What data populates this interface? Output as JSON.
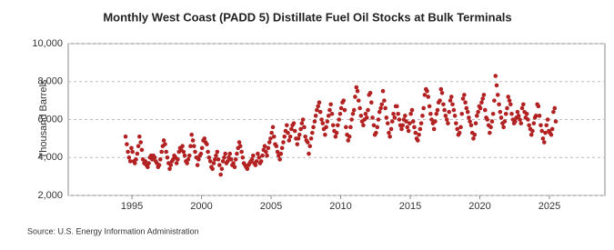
{
  "chart_data": {
    "type": "scatter",
    "title": "Monthly West Coast (PADD 5) Distillate Fuel Oil Stocks at Bulk Terminals",
    "y_label": "Thousand Barrels",
    "source": "Source: U.S. Energy Information Administration",
    "color": "#b22222",
    "grid": true,
    "xlim": [
      1990.42,
      2028.99
    ],
    "ylim": [
      2000,
      10000
    ],
    "xticks": [
      1995,
      2000,
      2005,
      2010,
      2015,
      2020,
      2025
    ],
    "yticks": [
      {
        "value": 2000,
        "label": "2,000"
      },
      {
        "value": 4000,
        "label": "4,000"
      },
      {
        "value": 6000,
        "label": "6,000"
      },
      {
        "value": 8000,
        "label": "8,000"
      },
      {
        "value": 10000,
        "label": "10,000"
      }
    ],
    "series": [
      {
        "name": "West Coast (PADD 5) Distillate Fuel Oil Stocks at Bulk Terminals",
        "x": [
          1994.54,
          1994.63,
          1994.71,
          1994.79,
          1994.88,
          1994.96,
          1995.04,
          1995.13,
          1995.21,
          1995.29,
          1995.38,
          1995.46,
          1995.54,
          1995.63,
          1995.71,
          1995.79,
          1995.88,
          1995.96,
          1996.04,
          1996.13,
          1996.21,
          1996.29,
          1996.38,
          1996.46,
          1996.54,
          1996.63,
          1996.71,
          1996.79,
          1996.88,
          1996.96,
          1997.04,
          1997.13,
          1997.21,
          1997.29,
          1997.38,
          1997.46,
          1997.54,
          1997.63,
          1997.71,
          1997.79,
          1997.88,
          1997.96,
          1998.04,
          1998.13,
          1998.21,
          1998.29,
          1998.38,
          1998.46,
          1998.54,
          1998.63,
          1998.71,
          1998.79,
          1998.88,
          1998.96,
          1999.04,
          1999.13,
          1999.21,
          1999.29,
          1999.38,
          1999.46,
          1999.54,
          1999.63,
          1999.71,
          1999.79,
          1999.88,
          1999.96,
          2000.04,
          2000.13,
          2000.21,
          2000.29,
          2000.38,
          2000.46,
          2000.54,
          2000.63,
          2000.71,
          2000.79,
          2000.88,
          2000.96,
          2001.04,
          2001.13,
          2001.21,
          2001.29,
          2001.38,
          2001.46,
          2001.54,
          2001.63,
          2001.71,
          2001.79,
          2001.88,
          2001.96,
          2002.04,
          2002.13,
          2002.21,
          2002.29,
          2002.38,
          2002.46,
          2002.54,
          2002.63,
          2002.71,
          2002.79,
          2002.88,
          2002.96,
          2003.04,
          2003.13,
          2003.21,
          2003.29,
          2003.38,
          2003.46,
          2003.54,
          2003.63,
          2003.71,
          2003.79,
          2003.88,
          2003.96,
          2004.04,
          2004.13,
          2004.21,
          2004.29,
          2004.38,
          2004.46,
          2004.54,
          2004.63,
          2004.71,
          2004.79,
          2004.88,
          2004.96,
          2005.04,
          2005.13,
          2005.21,
          2005.29,
          2005.38,
          2005.46,
          2005.54,
          2005.63,
          2005.71,
          2005.79,
          2005.88,
          2005.96,
          2006.04,
          2006.13,
          2006.21,
          2006.29,
          2006.38,
          2006.46,
          2006.54,
          2006.63,
          2006.71,
          2006.79,
          2006.88,
          2006.96,
          2007.04,
          2007.13,
          2007.21,
          2007.29,
          2007.38,
          2007.46,
          2007.54,
          2007.63,
          2007.71,
          2007.79,
          2007.88,
          2007.96,
          2008.04,
          2008.13,
          2008.21,
          2008.29,
          2008.38,
          2008.46,
          2008.54,
          2008.63,
          2008.71,
          2008.79,
          2008.88,
          2008.96,
          2009.04,
          2009.13,
          2009.21,
          2009.29,
          2009.38,
          2009.46,
          2009.54,
          2009.63,
          2009.71,
          2009.79,
          2009.88,
          2009.96,
          2010.04,
          2010.13,
          2010.21,
          2010.29,
          2010.38,
          2010.46,
          2010.54,
          2010.63,
          2010.71,
          2010.79,
          2010.88,
          2010.96,
          2011.04,
          2011.13,
          2011.21,
          2011.29,
          2011.38,
          2011.46,
          2011.54,
          2011.63,
          2011.71,
          2011.79,
          2011.88,
          2011.96,
          2012.04,
          2012.13,
          2012.21,
          2012.29,
          2012.38,
          2012.46,
          2012.54,
          2012.63,
          2012.71,
          2012.79,
          2012.88,
          2012.96,
          2013.04,
          2013.13,
          2013.21,
          2013.29,
          2013.38,
          2013.46,
          2013.54,
          2013.63,
          2013.71,
          2013.79,
          2013.88,
          2013.96,
          2014.04,
          2014.13,
          2014.21,
          2014.29,
          2014.38,
          2014.46,
          2014.54,
          2014.63,
          2014.71,
          2014.79,
          2014.88,
          2014.96,
          2015.04,
          2015.13,
          2015.21,
          2015.29,
          2015.38,
          2015.46,
          2015.54,
          2015.63,
          2015.71,
          2015.79,
          2015.88,
          2015.96,
          2016.04,
          2016.13,
          2016.21,
          2016.29,
          2016.38,
          2016.46,
          2016.54,
          2016.63,
          2016.71,
          2016.79,
          2016.88,
          2016.96,
          2017.04,
          2017.13,
          2017.21,
          2017.29,
          2017.38,
          2017.46,
          2017.54,
          2017.63,
          2017.71,
          2017.79,
          2017.88,
          2017.96,
          2018.04,
          2018.13,
          2018.21,
          2018.29,
          2018.38,
          2018.46,
          2018.54,
          2018.63,
          2018.71,
          2018.79,
          2018.88,
          2018.96,
          2019.04,
          2019.13,
          2019.21,
          2019.29,
          2019.38,
          2019.46,
          2019.54,
          2019.63,
          2019.71,
          2019.79,
          2019.88,
          2019.96,
          2020.04,
          2020.13,
          2020.21,
          2020.29,
          2020.38,
          2020.46,
          2020.54,
          2020.63,
          2020.71,
          2020.79,
          2020.88,
          2020.96,
          2021.04,
          2021.13,
          2021.21,
          2021.29,
          2021.38,
          2021.46,
          2021.54,
          2021.63,
          2021.71,
          2021.79,
          2021.88,
          2021.96,
          2022.04,
          2022.13,
          2022.21,
          2022.29,
          2022.38,
          2022.46,
          2022.54,
          2022.63,
          2022.71,
          2022.79,
          2022.88,
          2022.96,
          2023.04,
          2023.13,
          2023.21,
          2023.29,
          2023.38,
          2023.46,
          2023.54,
          2023.63,
          2023.71,
          2023.79,
          2023.88,
          2023.96,
          2024.04,
          2024.13,
          2024.21,
          2024.29,
          2024.38,
          2024.46,
          2024.54,
          2024.63,
          2024.71,
          2024.79,
          2024.88,
          2024.96,
          2025.04,
          2025.13,
          2025.21,
          2025.29,
          2025.38,
          2025.46
        ],
        "values": [
          5100,
          4700,
          4300,
          4000,
          3800,
          4500,
          4300,
          3800,
          3700,
          3900,
          4200,
          4600,
          5100,
          4800,
          4400,
          3900,
          3700,
          3800,
          3600,
          3500,
          3700,
          4000,
          4100,
          3900,
          4100,
          4000,
          3800,
          3700,
          3500,
          3600,
          3900,
          4300,
          4600,
          4900,
          4700,
          4300,
          4000,
          3700,
          3400,
          3600,
          3800,
          3900,
          4100,
          4000,
          3700,
          3900,
          4300,
          4500,
          4400,
          4600,
          4300,
          4100,
          3800,
          3700,
          3900,
          4100,
          4600,
          5200,
          4900,
          4600,
          4300,
          4000,
          3600,
          3900,
          4100,
          4200,
          4500,
          4900,
          5000,
          4800,
          4700,
          4300,
          4000,
          3800,
          3500,
          3400,
          3700,
          3900,
          4100,
          4300,
          3900,
          3600,
          3100,
          3400,
          3800,
          4000,
          4200,
          3700,
          3800,
          4000,
          4200,
          3900,
          3600,
          3700,
          3500,
          3900,
          4200,
          4500,
          4800,
          4600,
          4300,
          4000,
          3700,
          3600,
          3500,
          3400,
          3600,
          3700,
          3800,
          3900,
          4100,
          3700,
          3600,
          3800,
          4200,
          4000,
          3700,
          3800,
          4100,
          4400,
          4600,
          4300,
          4100,
          4500,
          4800,
          5000,
          5300,
          5600,
          5100,
          4700,
          4600,
          4300,
          4100,
          3900,
          4200,
          4500,
          4800,
          5100,
          5400,
          5700,
          5300,
          4900,
          5100,
          5500,
          5700,
          5800,
          5400,
          5000,
          4700,
          5000,
          5200,
          5500,
          5800,
          6000,
          5600,
          5100,
          4900,
          4800,
          4200,
          4600,
          5000,
          5300,
          5600,
          5900,
          6200,
          6500,
          6700,
          6900,
          6400,
          6000,
          5800,
          5500,
          5200,
          5600,
          5900,
          6200,
          6500,
          6800,
          6300,
          5700,
          5400,
          5100,
          5300,
          5700,
          6000,
          6300,
          6600,
          6900,
          7000,
          6500,
          5600,
          5200,
          4900,
          5100,
          5600,
          6000,
          6300,
          6500,
          7200,
          7700,
          7500,
          7000,
          6600,
          6200,
          5900,
          5700,
          6000,
          6300,
          6100,
          6500,
          7300,
          7400,
          6900,
          6100,
          5700,
          5200,
          5300,
          5600,
          6000,
          6400,
          6600,
          6800,
          7500,
          7000,
          6600,
          6100,
          5800,
          5300,
          5100,
          5500,
          5900,
          6300,
          6100,
          6700,
          6700,
          6300,
          6000,
          5700,
          5500,
          5700,
          6000,
          6200,
          5900,
          5600,
          5400,
          5800,
          6300,
          6500,
          5900,
          5600,
          5300,
          5000,
          4900,
          5200,
          5500,
          5800,
          6200,
          6600,
          7300,
          7600,
          7500,
          7200,
          6700,
          6300,
          6000,
          5800,
          5500,
          5900,
          6300,
          6500,
          6900,
          7000,
          7600,
          7400,
          6800,
          6500,
          6200,
          6000,
          5800,
          6400,
          7000,
          7200,
          6800,
          6500,
          6200,
          5800,
          5500,
          5200,
          5300,
          5600,
          6300,
          7100,
          7300,
          6900,
          6600,
          6400,
          6100,
          5900,
          5700,
          5300,
          5000,
          5200,
          5800,
          6200,
          6400,
          6700,
          6600,
          6900,
          7100,
          7300,
          6500,
          6100,
          6000,
          5700,
          5300,
          5600,
          5900,
          6300,
          7000,
          8300,
          7800,
          7300,
          6800,
          6400,
          6100,
          5800,
          5600,
          5900,
          6300,
          6600,
          7200,
          7000,
          6800,
          6300,
          6000,
          5800,
          5900,
          6100,
          6400,
          6200,
          6000,
          5800,
          6600,
          6800,
          6400,
          6100,
          6300,
          6000,
          5700,
          5500,
          5200,
          5400,
          5800,
          6100,
          6200,
          6800,
          6700,
          6200,
          5700,
          5400,
          5000,
          4800,
          5300,
          5700,
          6000,
          5400,
          5300,
          5200,
          5500,
          6400,
          6600,
          5900
        ]
      }
    ]
  }
}
